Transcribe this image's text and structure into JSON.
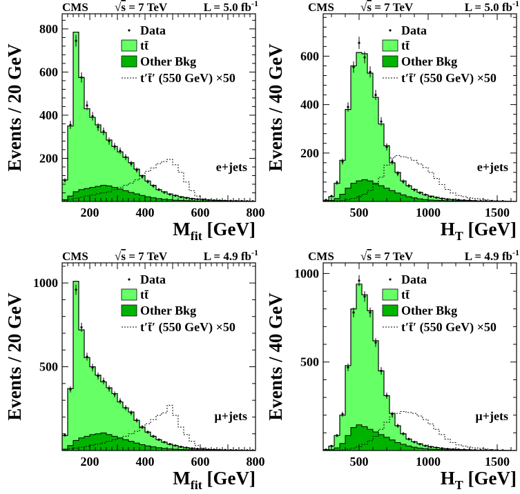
{
  "chart_data": [
    {
      "type": "histogram",
      "header": {
        "experiment": "CMS",
        "energy_sqrt": "s",
        "energy_rest": " = 7 TeV",
        "lumi": "L = 5.0 fb",
        "lumi_sup": "-1"
      },
      "channel": "e+jets",
      "ylabel": "Events / 20 GeV",
      "xlabel": "M",
      "xlabel_sub": "fit",
      "xlabel_unit": " [GeV]",
      "xlim": [
        100,
        800
      ],
      "ylim": [
        0,
        870
      ],
      "x_ticks": [
        200,
        400,
        600,
        800
      ],
      "y_ticks": [
        200,
        400,
        600,
        800
      ],
      "bin_width": 20,
      "legend": {
        "data": "Data",
        "ttbar": "tt̄",
        "other": "Other Bkg",
        "signal": "t′t̄′ (550 GeV) ×50"
      },
      "ttbar_total": [
        100,
        350,
        785,
        575,
        430,
        390,
        355,
        320,
        285,
        255,
        230,
        205,
        180,
        150,
        120,
        95,
        75,
        55,
        45,
        35,
        28,
        22,
        18,
        14,
        11,
        9,
        7,
        6,
        5,
        4,
        3,
        3,
        2,
        2,
        1
      ],
      "other_bkg": [
        8,
        25,
        45,
        55,
        60,
        65,
        70,
        75,
        72,
        65,
        58,
        50,
        42,
        35,
        28,
        22,
        17,
        13,
        10,
        8,
        6,
        5,
        4,
        3,
        2,
        2,
        1,
        1,
        1,
        1,
        0,
        0,
        0,
        0,
        0
      ],
      "signal": [
        5,
        10,
        15,
        20,
        25,
        30,
        35,
        40,
        45,
        55,
        65,
        75,
        85,
        100,
        120,
        140,
        155,
        175,
        185,
        195,
        170,
        135,
        90,
        50,
        25,
        12,
        8,
        5,
        3,
        2,
        1,
        1,
        0,
        0,
        0
      ],
      "data": [
        98,
        355,
        745,
        575,
        445,
        395,
        345,
        325,
        280,
        255,
        235,
        205,
        175,
        145,
        115,
        92,
        72,
        55,
        42,
        33,
        27,
        20,
        16,
        12,
        10,
        8,
        6,
        5,
        4,
        3,
        3,
        2,
        2,
        1,
        1
      ]
    },
    {
      "type": "histogram",
      "header": {
        "experiment": "CMS",
        "energy_sqrt": "s",
        "energy_rest": " = 7 TeV",
        "lumi": "L = 5.0 fb",
        "lumi_sup": "-1"
      },
      "channel": "e+jets",
      "ylabel": "Events / 40 GeV",
      "xlabel": "H",
      "xlabel_sub": "T",
      "xlabel_unit": " [GeV]",
      "xlim": [
        240,
        1640
      ],
      "ylim": [
        0,
        775
      ],
      "x_ticks": [
        500,
        1000,
        1500
      ],
      "y_ticks": [
        200,
        400,
        600
      ],
      "bin_width": 40,
      "legend": {
        "data": "Data",
        "ttbar": "tt̄",
        "other": "Other Bkg",
        "signal": "t′t̄′ (550 GeV) ×50"
      },
      "ttbar_total": [
        5,
        20,
        75,
        170,
        380,
        560,
        615,
        610,
        530,
        430,
        320,
        230,
        160,
        120,
        85,
        65,
        50,
        38,
        28,
        22,
        17,
        13,
        10,
        8,
        6,
        5,
        4,
        3,
        2,
        2,
        1,
        1,
        1,
        1,
        0
      ],
      "other_bkg": [
        1,
        4,
        12,
        30,
        55,
        75,
        85,
        90,
        85,
        75,
        65,
        55,
        45,
        35,
        27,
        20,
        15,
        11,
        8,
        6,
        5,
        4,
        3,
        2,
        2,
        1,
        1,
        1,
        1,
        0,
        0,
        0,
        0,
        0,
        0
      ],
      "signal": [
        0,
        1,
        2,
        4,
        8,
        12,
        20,
        30,
        45,
        70,
        100,
        150,
        180,
        190,
        185,
        180,
        170,
        155,
        140,
        120,
        95,
        70,
        50,
        35,
        25,
        20,
        15,
        12,
        10,
        8,
        5,
        3,
        2,
        1,
        1
      ],
      "data": [
        6,
        22,
        78,
        165,
        390,
        555,
        655,
        595,
        535,
        440,
        330,
        225,
        165,
        115,
        82,
        65,
        48,
        36,
        28,
        20,
        16,
        12,
        9,
        7,
        6,
        5,
        4,
        3,
        2,
        2,
        1,
        1,
        1,
        0,
        0
      ]
    },
    {
      "type": "histogram",
      "header": {
        "experiment": "CMS",
        "energy_sqrt": "s",
        "energy_rest": " = 7 TeV",
        "lumi": "L = 4.9 fb",
        "lumi_sup": "-1"
      },
      "channel": "μ+jets",
      "ylabel": "Events / 20 GeV",
      "xlabel": "M",
      "xlabel_sub": "fit",
      "xlabel_unit": " [GeV]",
      "xlim": [
        100,
        800
      ],
      "ylim": [
        0,
        1120
      ],
      "x_ticks": [
        200,
        400,
        600,
        800
      ],
      "y_ticks": [
        500,
        1000
      ],
      "bin_width": 20,
      "legend": {
        "data": "Data",
        "ttbar": "tt̄",
        "other": "Other Bkg",
        "signal": "t′t̄′ (550 GeV) ×50"
      },
      "ttbar_total": [
        90,
        370,
        1010,
        720,
        555,
        500,
        450,
        410,
        375,
        340,
        290,
        255,
        230,
        180,
        140,
        110,
        85,
        65,
        50,
        38,
        30,
        22,
        17,
        13,
        10,
        8,
        6,
        5,
        4,
        3,
        3,
        2,
        2,
        1,
        1
      ],
      "other_bkg": [
        8,
        30,
        60,
        75,
        85,
        95,
        100,
        105,
        95,
        85,
        75,
        65,
        55,
        45,
        35,
        28,
        22,
        17,
        13,
        10,
        8,
        6,
        5,
        4,
        3,
        2,
        2,
        1,
        1,
        1,
        0,
        0,
        0,
        0,
        0
      ],
      "signal": [
        5,
        10,
        15,
        20,
        25,
        32,
        40,
        45,
        55,
        65,
        75,
        85,
        100,
        115,
        135,
        160,
        185,
        210,
        225,
        270,
        210,
        140,
        95,
        55,
        30,
        15,
        10,
        6,
        4,
        2,
        1,
        1,
        0,
        0,
        0
      ],
      "data": [
        92,
        365,
        960,
        735,
        560,
        495,
        445,
        415,
        370,
        335,
        295,
        255,
        225,
        180,
        140,
        110,
        85,
        65,
        50,
        38,
        30,
        22,
        17,
        13,
        10,
        8,
        6,
        5,
        4,
        3,
        2,
        2,
        1,
        1,
        1
      ]
    },
    {
      "type": "histogram",
      "header": {
        "experiment": "CMS",
        "energy_sqrt": "s",
        "energy_rest": " = 7 TeV",
        "lumi": "L = 4.9 fb",
        "lumi_sup": "-1"
      },
      "channel": "μ+jets",
      "ylabel": "Events / 40 GeV",
      "xlabel": "H",
      "xlabel_sub": "T",
      "xlabel_unit": " [GeV]",
      "xlim": [
        240,
        1640
      ],
      "ylim": [
        0,
        1060
      ],
      "x_ticks": [
        500,
        1000,
        1500
      ],
      "y_ticks": [
        500,
        1000
      ],
      "bin_width": 40,
      "legend": {
        "data": "Data",
        "ttbar": "tt̄",
        "other": "Other Bkg",
        "signal": "t′t̄′ (550 GeV) ×50"
      },
      "ttbar_total": [
        5,
        25,
        85,
        200,
        480,
        800,
        940,
        880,
        790,
        620,
        450,
        310,
        210,
        140,
        95,
        65,
        50,
        38,
        28,
        22,
        17,
        13,
        10,
        8,
        6,
        5,
        4,
        3,
        2,
        2,
        1,
        1,
        1,
        1,
        0
      ],
      "other_bkg": [
        1,
        5,
        15,
        40,
        85,
        130,
        145,
        135,
        120,
        105,
        90,
        75,
        60,
        45,
        35,
        26,
        19,
        14,
        10,
        8,
        6,
        5,
        4,
        3,
        2,
        2,
        1,
        1,
        1,
        0,
        0,
        0,
        0,
        0,
        0
      ],
      "signal": [
        0,
        1,
        2,
        4,
        8,
        14,
        22,
        35,
        55,
        80,
        120,
        160,
        190,
        210,
        220,
        215,
        210,
        195,
        175,
        150,
        120,
        90,
        65,
        45,
        32,
        25,
        20,
        15,
        12,
        9,
        6,
        4,
        2,
        1,
        1
      ],
      "data": [
        5,
        26,
        85,
        205,
        470,
        780,
        960,
        870,
        780,
        610,
        450,
        310,
        205,
        140,
        95,
        65,
        48,
        36,
        27,
        20,
        16,
        12,
        9,
        7,
        6,
        5,
        4,
        3,
        2,
        2,
        1,
        1,
        1,
        0,
        0
      ]
    }
  ],
  "colors": {
    "ttbar": "#66ff66",
    "other_bkg": "#00b300",
    "line": "#000000",
    "background": "#ffffff"
  }
}
